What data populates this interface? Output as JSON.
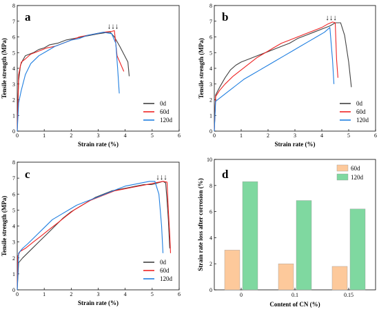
{
  "chart_data": [
    {
      "panel": "a",
      "type": "line",
      "xlabel": "Strain rate (%)",
      "ylabel": "Tensile strength (MPa)",
      "xlim": [
        0,
        6
      ],
      "ylim": [
        0,
        8
      ],
      "xticks": [
        "0",
        "1",
        "2",
        "3",
        "4",
        "5",
        "6"
      ],
      "yticks": [
        "0",
        "1",
        "2",
        "3",
        "4",
        "5",
        "6",
        "7",
        "8"
      ],
      "legend_position": "bottom-right",
      "annotation": "↓↓↓",
      "series": [
        {
          "name": "0d",
          "color": "#404040",
          "x": [
            0,
            0.05,
            0.12,
            0.2,
            0.3,
            0.45,
            0.6,
            0.8,
            1.0,
            1.2,
            1.5,
            1.8,
            2.1,
            2.4,
            2.7,
            3.0,
            3.2,
            3.35,
            3.45,
            3.6,
            3.8,
            3.95,
            4.1,
            4.15
          ],
          "y": [
            0,
            3.2,
            4.2,
            4.5,
            4.8,
            4.9,
            5.0,
            5.2,
            5.3,
            5.5,
            5.6,
            5.8,
            5.9,
            6.0,
            6.1,
            6.2,
            6.25,
            6.3,
            6.3,
            6.0,
            5.4,
            4.9,
            4.4,
            3.5
          ]
        },
        {
          "name": "60d",
          "color": "#ee2222",
          "x": [
            0,
            0.05,
            0.15,
            0.3,
            0.5,
            0.8,
            1.1,
            1.4,
            1.7,
            2.0,
            2.3,
            2.6,
            2.9,
            3.2,
            3.5,
            3.6,
            3.7,
            3.85,
            3.95
          ],
          "y": [
            0,
            3.6,
            4.4,
            4.6,
            4.9,
            5.1,
            5.3,
            5.4,
            5.6,
            5.8,
            6.0,
            6.1,
            6.2,
            6.3,
            6.35,
            6.4,
            4.8,
            4.2,
            3.8
          ]
        },
        {
          "name": "120d",
          "color": "#1e7ee0",
          "x": [
            0,
            0.05,
            0.15,
            0.3,
            0.5,
            0.8,
            1.1,
            1.4,
            1.7,
            2.0,
            2.3,
            2.6,
            2.9,
            3.2,
            3.5,
            3.65,
            3.72,
            3.78
          ],
          "y": [
            0,
            1.8,
            2.6,
            3.6,
            4.3,
            4.8,
            5.1,
            5.4,
            5.6,
            5.8,
            5.9,
            6.1,
            6.2,
            6.3,
            6.2,
            5.6,
            4.0,
            2.4
          ]
        }
      ]
    },
    {
      "panel": "b",
      "type": "line",
      "xlabel": "Strain rate (%)",
      "ylabel": "Tensile strength (MPa)",
      "xlim": [
        0,
        6
      ],
      "ylim": [
        0,
        8
      ],
      "xticks": [
        "0",
        "1",
        "2",
        "3",
        "4",
        "5",
        "6"
      ],
      "yticks": [
        "0",
        "1",
        "2",
        "3",
        "4",
        "5",
        "6",
        "7",
        "8"
      ],
      "legend_position": "bottom-right",
      "annotation": "↓↓↓",
      "series": [
        {
          "name": "0d",
          "color": "#404040",
          "x": [
            0,
            0.05,
            0.2,
            0.4,
            0.6,
            0.8,
            1.0,
            1.3,
            1.6,
            1.9,
            2.2,
            2.5,
            2.8,
            3.1,
            3.4,
            3.7,
            4.0,
            4.3,
            4.5,
            4.7,
            4.85,
            5.0,
            5.1
          ],
          "y": [
            0,
            2.3,
            2.8,
            3.4,
            3.9,
            4.2,
            4.4,
            4.6,
            4.8,
            5.0,
            5.2,
            5.4,
            5.6,
            5.9,
            6.1,
            6.3,
            6.5,
            6.7,
            6.9,
            6.9,
            6.1,
            4.4,
            2.8
          ]
        },
        {
          "name": "60d",
          "color": "#ee2222",
          "x": [
            0,
            0.05,
            0.2,
            0.4,
            0.7,
            1.0,
            1.3,
            1.6,
            1.9,
            2.2,
            2.5,
            2.8,
            3.1,
            3.4,
            3.7,
            4.0,
            4.2,
            4.4,
            4.5,
            4.55,
            4.6
          ],
          "y": [
            0,
            2.2,
            2.6,
            3.0,
            3.5,
            3.9,
            4.3,
            4.7,
            5.0,
            5.3,
            5.6,
            5.8,
            6.0,
            6.2,
            6.4,
            6.6,
            6.8,
            6.95,
            6.9,
            4.6,
            3.4
          ]
        },
        {
          "name": "120d",
          "color": "#1e7ee0",
          "x": [
            0,
            0.05,
            0.2,
            0.5,
            0.8,
            1.1,
            1.4,
            1.7,
            2.0,
            2.3,
            2.6,
            2.9,
            3.2,
            3.5,
            3.8,
            4.1,
            4.3,
            4.4,
            4.45
          ],
          "y": [
            0,
            1.9,
            2.1,
            2.5,
            2.9,
            3.3,
            3.6,
            3.9,
            4.2,
            4.5,
            4.8,
            5.1,
            5.4,
            5.7,
            6.0,
            6.3,
            6.6,
            4.5,
            3.0
          ]
        }
      ]
    },
    {
      "panel": "c",
      "type": "line",
      "xlabel": "Strain rate (%)",
      "ylabel": "Tensile strength (MPa)",
      "xlim": [
        0,
        6
      ],
      "ylim": [
        0,
        8
      ],
      "xticks": [
        "0",
        "1",
        "2",
        "3",
        "4",
        "5",
        "6"
      ],
      "yticks": [
        "0",
        "1",
        "2",
        "3",
        "4",
        "5",
        "6",
        "7",
        "8"
      ],
      "legend_position": "bottom-right",
      "annotation": "↓↓↓",
      "series": [
        {
          "name": "0d",
          "color": "#404040",
          "x": [
            0,
            0.05,
            0.2,
            0.5,
            0.8,
            1.1,
            1.4,
            1.7,
            2.0,
            2.3,
            2.6,
            2.9,
            3.2,
            3.5,
            3.8,
            4.1,
            4.4,
            4.7,
            5.0,
            5.2,
            5.4,
            5.5,
            5.55,
            5.6,
            5.65
          ],
          "y": [
            0,
            1.7,
            2.0,
            2.5,
            3.0,
            3.5,
            4.0,
            4.5,
            4.9,
            5.2,
            5.5,
            5.8,
            6.0,
            6.2,
            6.3,
            6.4,
            6.5,
            6.6,
            6.6,
            6.7,
            6.8,
            6.7,
            5.6,
            4.4,
            2.6
          ]
        },
        {
          "name": "60d",
          "color": "#ee2222",
          "x": [
            0,
            0.02,
            0.1,
            0.3,
            0.6,
            0.9,
            1.2,
            1.5,
            1.8,
            2.1,
            2.4,
            2.7,
            3.0,
            3.3,
            3.6,
            3.9,
            4.2,
            4.5,
            4.8,
            5.1,
            5.4,
            5.55,
            5.6,
            5.65,
            5.68
          ],
          "y": [
            0,
            2.1,
            2.4,
            2.6,
            3.0,
            3.4,
            3.8,
            4.2,
            4.6,
            5.0,
            5.3,
            5.6,
            5.8,
            6.0,
            6.2,
            6.3,
            6.4,
            6.5,
            6.6,
            6.7,
            6.8,
            6.75,
            5.0,
            3.5,
            2.3
          ]
        },
        {
          "name": "120d",
          "color": "#1e7ee0",
          "x": [
            0,
            0.05,
            0.2,
            0.4,
            0.7,
            1.0,
            1.3,
            1.6,
            1.9,
            2.2,
            2.5,
            2.8,
            3.1,
            3.4,
            3.7,
            4.0,
            4.3,
            4.6,
            4.9,
            5.1,
            5.25,
            5.35,
            5.4
          ],
          "y": [
            0,
            2.3,
            2.6,
            2.9,
            3.4,
            3.9,
            4.4,
            4.7,
            5.0,
            5.3,
            5.5,
            5.7,
            5.9,
            6.1,
            6.3,
            6.5,
            6.6,
            6.7,
            6.8,
            6.8,
            6.0,
            4.0,
            2.3
          ]
        }
      ]
    },
    {
      "panel": "d",
      "type": "bar",
      "xlabel": "Content of CN (%)",
      "ylabel": "Strain rate loss after corrosion (%)",
      "ylim": [
        0,
        10
      ],
      "yticks": [
        "0",
        "2",
        "4",
        "6",
        "8",
        "10"
      ],
      "categories": [
        "0",
        "0.1",
        "0.15"
      ],
      "legend_position": "top-right",
      "series": [
        {
          "name": "60d",
          "color": "#fdc99b",
          "values": [
            3.05,
            2.0,
            1.8
          ]
        },
        {
          "name": "120d",
          "color": "#7fd8a0",
          "values": [
            8.3,
            6.85,
            6.2
          ]
        }
      ]
    }
  ]
}
